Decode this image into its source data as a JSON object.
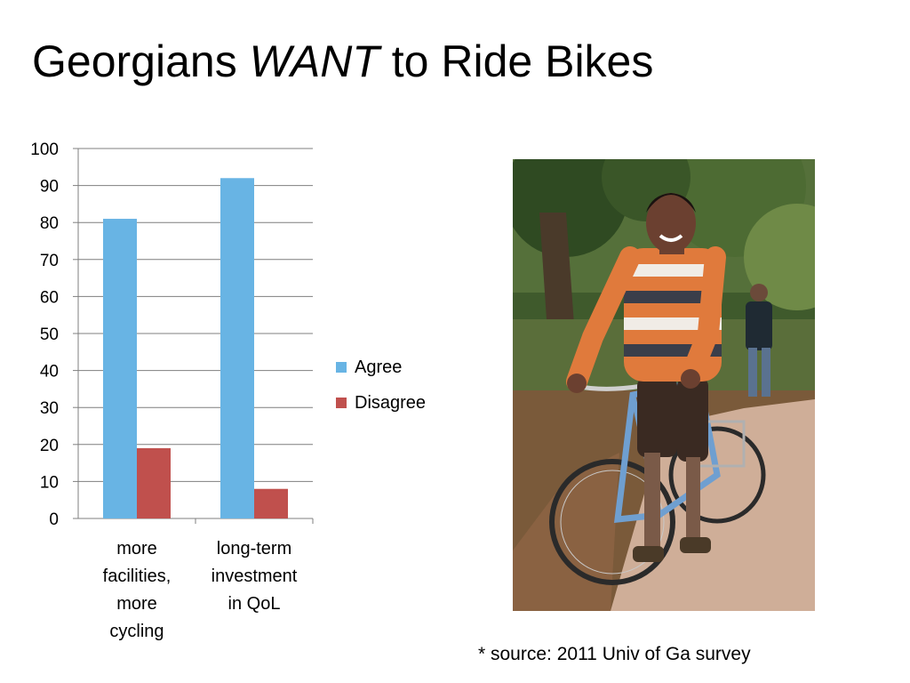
{
  "slide": {
    "title_prefix": "Georgians ",
    "title_emphasis": "WANT",
    "title_suffix": " to Ride Bikes",
    "source_note": "* source: 2011 Univ of Ga survey"
  },
  "chart_data": {
    "type": "bar",
    "categories": [
      [
        "more",
        "facilities,",
        "more",
        "cycling"
      ],
      [
        "long-term",
        "investment",
        "in QoL"
      ]
    ],
    "series": [
      {
        "name": "Agree",
        "values": [
          81,
          92
        ],
        "color": "#68b4e4"
      },
      {
        "name": "Disagree",
        "values": [
          19,
          8
        ],
        "color": "#c0504d"
      }
    ],
    "ylim": [
      0,
      100
    ],
    "yticks": [
      0,
      10,
      20,
      30,
      40,
      50,
      60,
      70,
      80,
      90,
      100
    ],
    "grid": true,
    "legend": "right"
  },
  "photo": {
    "icon": "cyclist-photo",
    "colors": {
      "foliage": "#3f5a2c",
      "path": "#cfae98",
      "sweater_orange": "#e07a3c",
      "bike_frame": "#6f9fd0"
    }
  }
}
